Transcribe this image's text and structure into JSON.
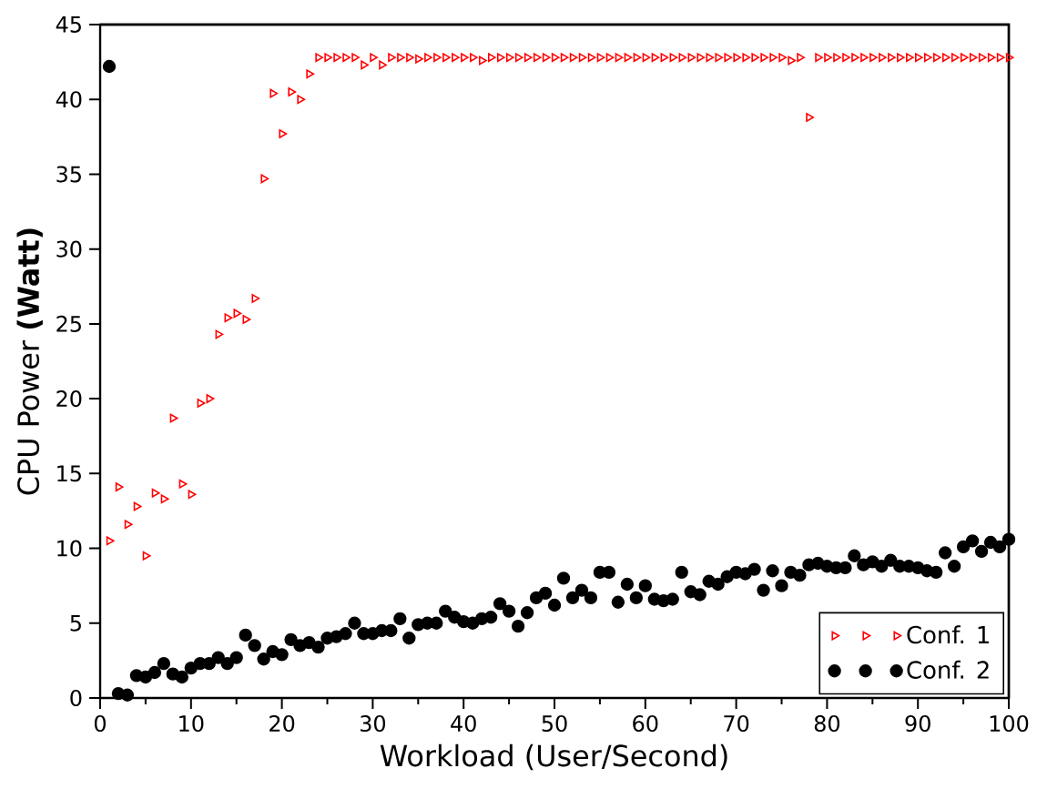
{
  "chart_data": {
    "type": "scatter",
    "xlabel": "Workload (User/Second)",
    "ylabel": "CPU Power **(Watt)**",
    "xlim": [
      0,
      100
    ],
    "ylim": [
      0,
      45
    ],
    "xticks": [
      0,
      10,
      20,
      30,
      40,
      50,
      60,
      70,
      80,
      90,
      100
    ],
    "yticks": [
      0,
      5,
      10,
      15,
      20,
      25,
      30,
      35,
      40,
      45
    ],
    "grid": false,
    "legend": "bottom right",
    "x": [
      1,
      2,
      3,
      4,
      5,
      6,
      7,
      8,
      9,
      10,
      11,
      12,
      13,
      14,
      15,
      16,
      17,
      18,
      19,
      20,
      21,
      22,
      23,
      24,
      25,
      26,
      27,
      28,
      29,
      30,
      31,
      32,
      33,
      34,
      35,
      36,
      37,
      38,
      39,
      40,
      41,
      42,
      43,
      44,
      45,
      46,
      47,
      48,
      49,
      50,
      51,
      52,
      53,
      54,
      55,
      56,
      57,
      58,
      59,
      60,
      61,
      62,
      63,
      64,
      65,
      66,
      67,
      68,
      69,
      70,
      71,
      72,
      73,
      74,
      75,
      76,
      77,
      78,
      79,
      80,
      81,
      82,
      83,
      84,
      85,
      86,
      87,
      88,
      89,
      90,
      91,
      92,
      93,
      94,
      95,
      96,
      97,
      98,
      99,
      100
    ],
    "series": [
      {
        "name": "Conf. 1",
        "color": "#ff0000",
        "marker": "triangle",
        "values": [
          10.5,
          14.1,
          11.6,
          12.8,
          9.5,
          13.7,
          13.3,
          18.7,
          14.3,
          13.6,
          19.7,
          20.0,
          24.3,
          25.4,
          25.7,
          25.3,
          26.7,
          34.7,
          40.4,
          37.7,
          40.5,
          40.0,
          41.7,
          42.8,
          42.8,
          42.8,
          42.8,
          42.8,
          42.3,
          42.8,
          42.3,
          42.8,
          42.8,
          42.8,
          42.7,
          42.8,
          42.8,
          42.8,
          42.8,
          42.8,
          42.8,
          42.6,
          42.8,
          42.8,
          42.8,
          42.8,
          42.8,
          42.8,
          42.8,
          42.8,
          42.8,
          42.8,
          42.8,
          42.8,
          42.8,
          42.8,
          42.8,
          42.8,
          42.8,
          42.8,
          42.8,
          42.8,
          42.8,
          42.8,
          42.8,
          42.8,
          42.8,
          42.8,
          42.8,
          42.8,
          42.8,
          42.8,
          42.8,
          42.8,
          42.8,
          42.6,
          42.8,
          38.8,
          42.8,
          42.8,
          42.8,
          42.8,
          42.8,
          42.8,
          42.8,
          42.8,
          42.8,
          42.8,
          42.8,
          42.8,
          42.8,
          42.8,
          42.8,
          42.8,
          42.8,
          42.8,
          42.8,
          42.8,
          42.8,
          42.8
        ]
      },
      {
        "name": "Conf. 2",
        "color": "#000000",
        "marker": "circle",
        "values": [
          42.2,
          0.3,
          0.2,
          1.5,
          1.4,
          1.7,
          2.3,
          1.6,
          1.4,
          2.0,
          2.3,
          2.3,
          2.7,
          2.3,
          2.7,
          4.2,
          3.5,
          2.6,
          3.1,
          2.9,
          3.9,
          3.5,
          3.7,
          3.4,
          4.0,
          4.1,
          4.3,
          5.0,
          4.3,
          4.3,
          4.5,
          4.5,
          5.3,
          4.0,
          4.9,
          5.0,
          5.0,
          5.8,
          5.4,
          5.1,
          5.0,
          5.3,
          5.4,
          6.3,
          5.8,
          4.8,
          5.7,
          6.7,
          7.0,
          6.2,
          8.0,
          6.7,
          7.2,
          6.7,
          8.4,
          8.4,
          6.4,
          7.6,
          6.7,
          7.5,
          6.6,
          6.5,
          6.6,
          8.4,
          7.1,
          6.9,
          7.8,
          7.6,
          8.1,
          8.4,
          8.3,
          8.6,
          7.2,
          8.5,
          7.5,
          8.4,
          8.2,
          8.9,
          9.0,
          8.8,
          8.7,
          8.7,
          9.5,
          8.9,
          9.1,
          8.8,
          9.2,
          8.8,
          8.8,
          8.7,
          8.5,
          8.4,
          9.7,
          8.8,
          10.1,
          10.5,
          9.8,
          10.4,
          10.1,
          10.6
        ]
      }
    ]
  }
}
